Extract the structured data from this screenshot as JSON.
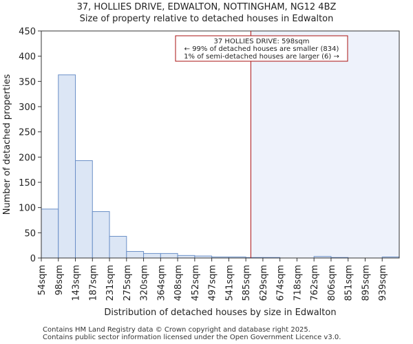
{
  "header": {
    "title_line1": "37, HOLLIES DRIVE, EDWALTON, NOTTINGHAM, NG12 4BZ",
    "title_line2": "Size of property relative to detached houses in Edwalton"
  },
  "footer": {
    "line1": "Contains HM Land Registry data © Crown copyright and database right 2025.",
    "line2": "Contains public sector information licensed under the Open Government Licence v3.0."
  },
  "colors": {
    "bar_fill": "#dce6f5",
    "bar_stroke": "#6a8fc7",
    "marker": "#aa1111",
    "shade": "#eef2fb",
    "axis": "#333333",
    "grid": "#dddddd"
  },
  "chart_data": {
    "type": "bar",
    "title": "37, HOLLIES DRIVE, EDWALTON, NOTTINGHAM, NG12 4BZ",
    "subtitle": "Size of property relative to detached houses in Edwalton",
    "xlabel": "Distribution of detached houses by size in Edwalton",
    "ylabel": "Number of detached properties",
    "categories": [
      "54sqm",
      "98sqm",
      "143sqm",
      "187sqm",
      "231sqm",
      "275sqm",
      "320sqm",
      "364sqm",
      "408sqm",
      "452sqm",
      "497sqm",
      "541sqm",
      "585sqm",
      "629sqm",
      "674sqm",
      "718sqm",
      "762sqm",
      "806sqm",
      "851sqm",
      "895sqm",
      "939sqm"
    ],
    "values": [
      97,
      363,
      193,
      92,
      43,
      13,
      9,
      9,
      5,
      4,
      2,
      2,
      1,
      1,
      0,
      0,
      3,
      1,
      0,
      0,
      2
    ],
    "ylim": [
      0,
      450
    ],
    "yticks": [
      0,
      50,
      100,
      150,
      200,
      250,
      300,
      350,
      400,
      450
    ],
    "marker_value": 598,
    "annotation": {
      "line1": "37 HOLLIES DRIVE: 598sqm",
      "line2": "← 99% of detached houses are smaller (834)",
      "line3": "1% of semi-detached houses are larger (6) →"
    },
    "grid": false,
    "legend": "none"
  }
}
